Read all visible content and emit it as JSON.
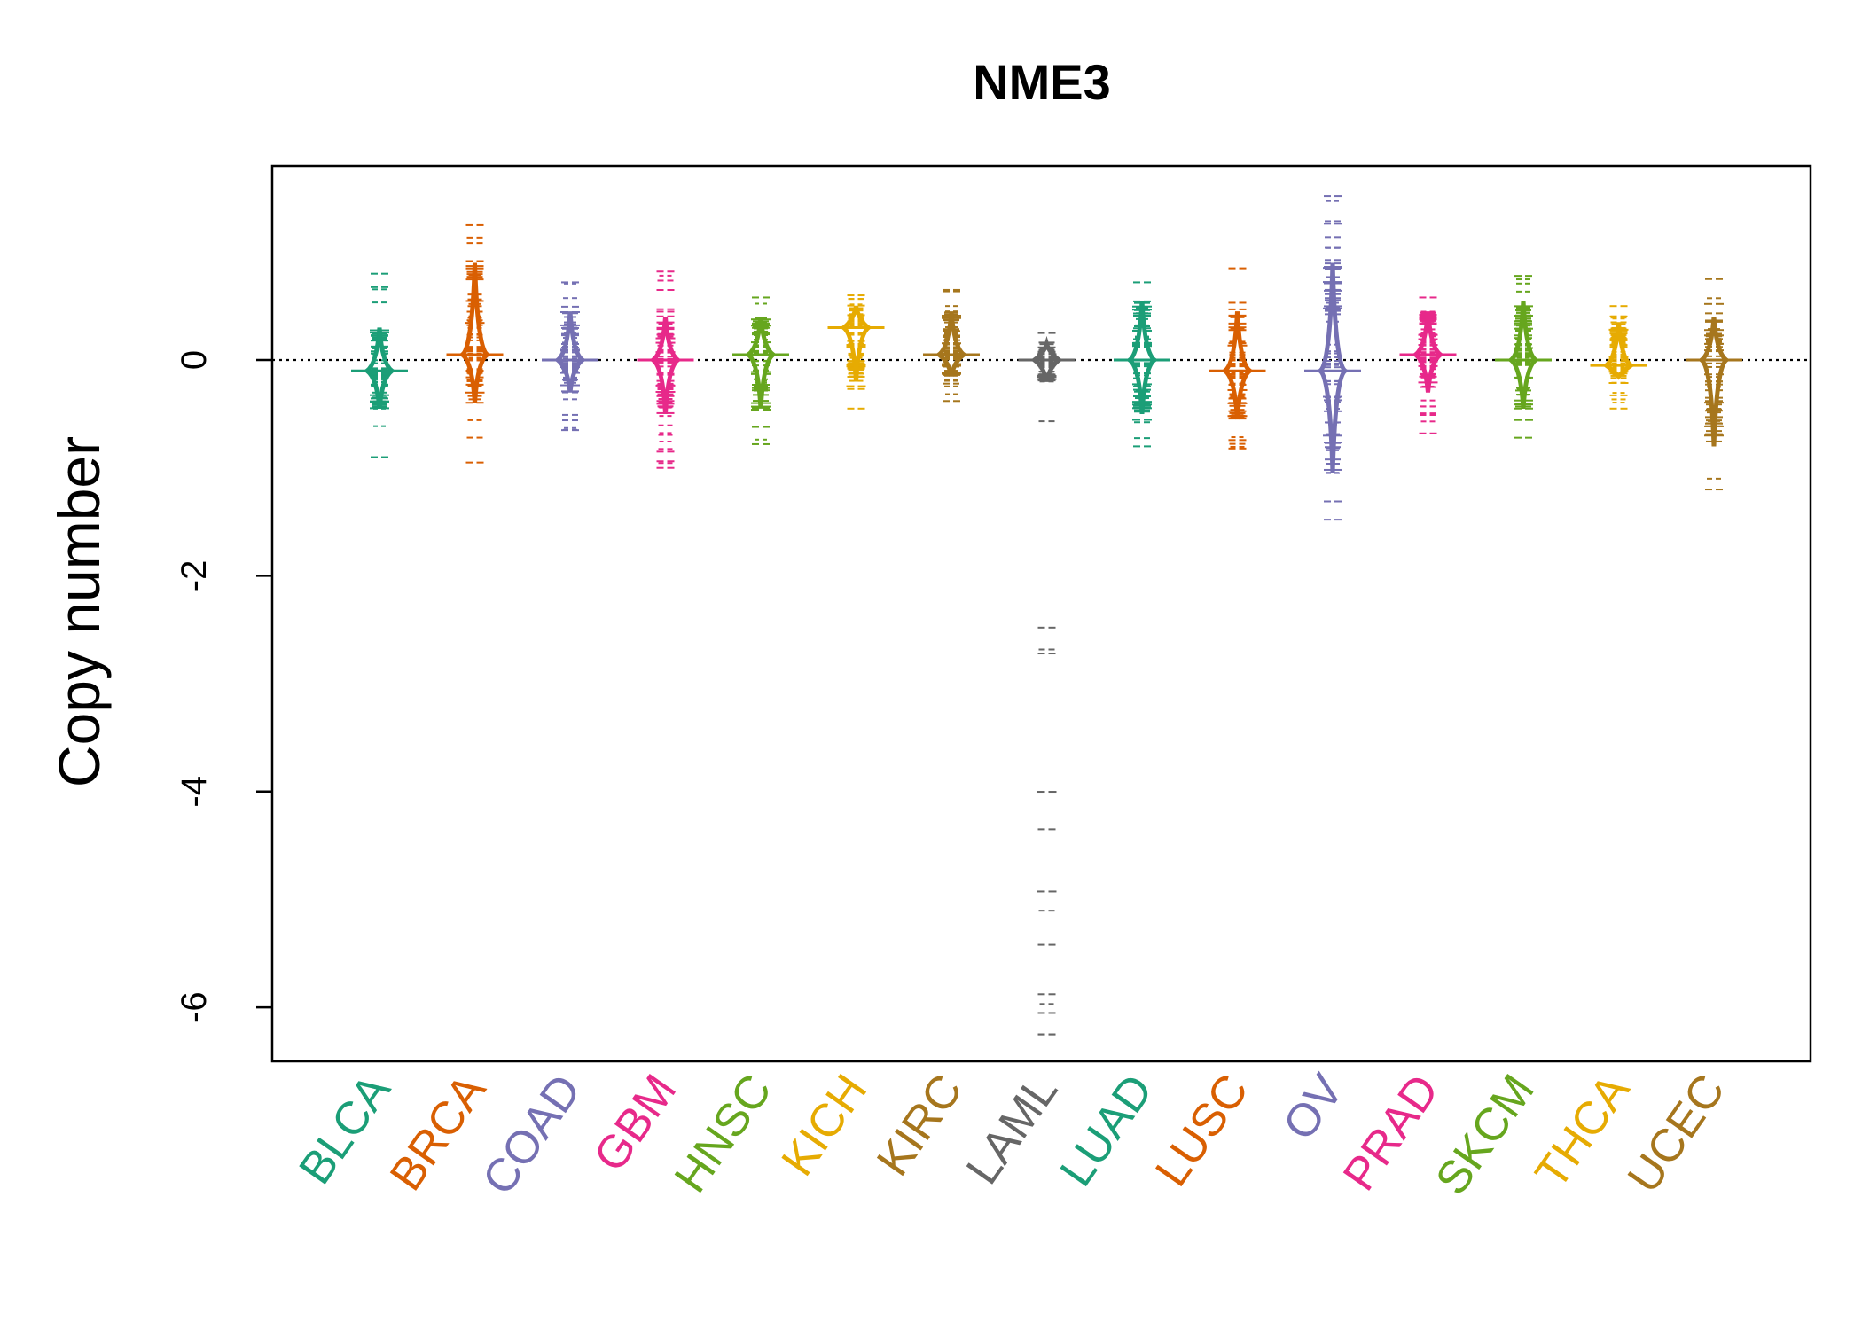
{
  "chart_data": {
    "type": "beanplot",
    "title": "NME3",
    "xlabel": "",
    "ylabel": "Copy number",
    "ylim": [
      -6.5,
      1.8
    ],
    "yticks": [
      0,
      -2,
      -4,
      -6
    ],
    "ytick_labels": [
      "0",
      "-2",
      "-4",
      "-6"
    ],
    "reference_line": 0,
    "grid": false,
    "categories": [
      "BLCA",
      "BRCA",
      "COAD",
      "GBM",
      "HNSC",
      "KICH",
      "KIRC",
      "LAML",
      "LUAD",
      "LUSC",
      "OV",
      "PRAD",
      "SKCM",
      "THCA",
      "UCEC"
    ],
    "colors": [
      "#1b9e77",
      "#d95f02",
      "#7570b3",
      "#e7298a",
      "#66a61e",
      "#e6ab02",
      "#a6761d",
      "#666666",
      "#1b9e77",
      "#d95f02",
      "#7570b3",
      "#e7298a",
      "#66a61e",
      "#e6ab02",
      "#a6761d"
    ],
    "series": [
      {
        "category": "BLCA",
        "min": -0.9,
        "max": 0.8,
        "q1": -0.45,
        "q3": 0.3,
        "mean": -0.1
      },
      {
        "category": "BRCA",
        "min": -0.95,
        "max": 1.25,
        "q1": -0.4,
        "q3": 0.9,
        "mean": 0.05
      },
      {
        "category": "COAD",
        "min": -0.65,
        "max": 0.72,
        "q1": -0.3,
        "q3": 0.45,
        "mean": 0.0
      },
      {
        "category": "GBM",
        "min": -1.0,
        "max": 0.82,
        "q1": -0.5,
        "q3": 0.4,
        "mean": 0.0
      },
      {
        "category": "HNSC",
        "min": -0.78,
        "max": 0.58,
        "q1": -0.45,
        "q3": 0.4,
        "mean": 0.05
      },
      {
        "category": "KICH",
        "min": -0.45,
        "max": 0.6,
        "q1": -0.2,
        "q3": 0.5,
        "mean": 0.3
      },
      {
        "category": "KIRC",
        "min": -0.38,
        "max": 0.65,
        "q1": -0.15,
        "q3": 0.45,
        "mean": 0.05
      },
      {
        "category": "LAML",
        "min": -6.25,
        "max": 0.25,
        "q1": -0.2,
        "q3": 0.15,
        "mean": 0.0,
        "outliers": [
          -2.48,
          -2.72,
          -4.35,
          -5.42,
          -6.25
        ]
      },
      {
        "category": "LUAD",
        "min": -0.8,
        "max": 0.72,
        "q1": -0.5,
        "q3": 0.55,
        "mean": 0.0
      },
      {
        "category": "LUSC",
        "min": -0.82,
        "max": 0.85,
        "q1": -0.55,
        "q3": 0.45,
        "mean": -0.1
      },
      {
        "category": "OV",
        "min": -1.48,
        "max": 1.52,
        "q1": -1.05,
        "q3": 0.9,
        "mean": -0.1
      },
      {
        "category": "PRAD",
        "min": -0.68,
        "max": 0.58,
        "q1": -0.3,
        "q3": 0.45,
        "mean": 0.05
      },
      {
        "category": "SKCM",
        "min": -0.72,
        "max": 0.78,
        "q1": -0.45,
        "q3": 0.55,
        "mean": 0.0
      },
      {
        "category": "THCA",
        "min": -0.45,
        "max": 0.5,
        "q1": -0.15,
        "q3": 0.35,
        "mean": -0.05
      },
      {
        "category": "UCEC",
        "min": -1.2,
        "max": 0.75,
        "q1": -0.8,
        "q3": 0.4,
        "mean": 0.0
      }
    ]
  }
}
